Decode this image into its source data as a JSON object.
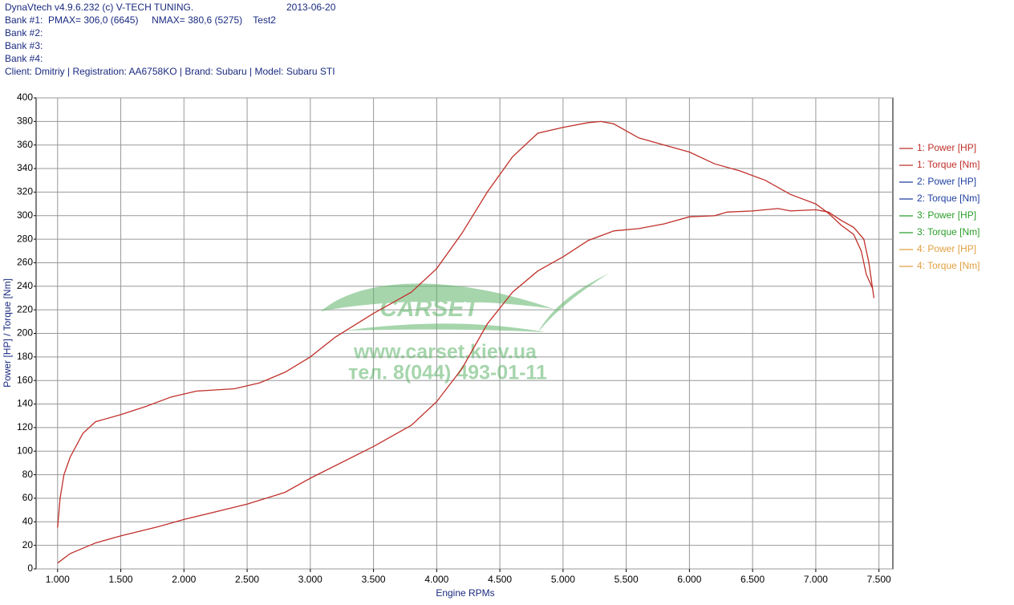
{
  "chart_data": {
    "type": "line",
    "header": [
      "DynaVtech v4.9.6.232 (c) V-TECH TUNING.",
      "Bank #1:  PMAX= 306,0 (6645)     NMAX= 380,6 (5275)    Test2",
      "Bank #2:",
      "Bank #3:",
      "Bank #4:",
      "Client: Dmitriy | Registration: AA6758KO | Brand: Subaru | Model: Subaru STI"
    ],
    "date": "2013-06-20",
    "x_label": "Engine RPMs",
    "y_label": "Power [HP] / Torque [Nm]",
    "watermark": [
      "CARSET",
      "www.carset.kiev.ua",
      "тел. 8(044) 493-01-11"
    ],
    "xlim": [
      830,
      7610
    ],
    "ylim": [
      0,
      400
    ],
    "xticks": [
      {
        "value": 1000,
        "label": "1.000"
      },
      {
        "value": 1500,
        "label": "1.500"
      },
      {
        "value": 2000,
        "label": "2.000"
      },
      {
        "value": 2500,
        "label": "2.500"
      },
      {
        "value": 3000,
        "label": "3.000"
      },
      {
        "value": 3500,
        "label": "3.500"
      },
      {
        "value": 4000,
        "label": "4.000"
      },
      {
        "value": 4500,
        "label": "4.500"
      },
      {
        "value": 5000,
        "label": "5.000"
      },
      {
        "value": 5500,
        "label": "5.500"
      },
      {
        "value": 6000,
        "label": "6.000"
      },
      {
        "value": 6500,
        "label": "6.500"
      },
      {
        "value": 7000,
        "label": "7.000"
      },
      {
        "value": 7500,
        "label": "7.500"
      }
    ],
    "yticks": [
      0,
      20,
      40,
      60,
      80,
      100,
      120,
      140,
      160,
      180,
      200,
      220,
      240,
      260,
      280,
      300,
      320,
      340,
      360,
      380,
      400
    ],
    "grid": true,
    "legend": "right",
    "series": [
      {
        "name": "1: Power [HP]",
        "color": "#c0302a",
        "x": [
          1000,
          1100,
          1300,
          1500,
          1800,
          2000,
          2500,
          2800,
          3000,
          3500,
          3800,
          4000,
          4200,
          4400,
          4600,
          4800,
          5000,
          5200,
          5400,
          5600,
          5800,
          6000,
          6200,
          6300,
          6500,
          6700,
          6800,
          7000,
          7100,
          7200,
          7300,
          7380,
          7420,
          7460
        ],
        "values": [
          5,
          13,
          22,
          28,
          36,
          42,
          55,
          65,
          77,
          104,
          122,
          142,
          170,
          208,
          235,
          253,
          265,
          279,
          287,
          289,
          293,
          299,
          300,
          303,
          304,
          306,
          304,
          305,
          303,
          296,
          290,
          280,
          260,
          230
        ]
      },
      {
        "name": "1: Torque [Nm]",
        "color": "#c0302a",
        "x": [
          1000,
          1020,
          1050,
          1100,
          1200,
          1300,
          1500,
          1700,
          1900,
          2100,
          2400,
          2600,
          2800,
          3000,
          3200,
          3500,
          3800,
          4000,
          4200,
          4400,
          4600,
          4800,
          5000,
          5200,
          5300,
          5400,
          5600,
          5800,
          6000,
          6200,
          6400,
          6600,
          6800,
          7000,
          7100,
          7200,
          7300,
          7360,
          7400,
          7450
        ],
        "values": [
          35,
          60,
          80,
          95,
          115,
          125,
          131,
          138,
          146,
          151,
          153,
          158,
          167,
          180,
          197,
          217,
          235,
          255,
          285,
          320,
          350,
          370,
          375,
          379,
          380,
          378,
          366,
          360,
          354,
          344,
          338,
          330,
          318,
          310,
          302,
          292,
          284,
          270,
          250,
          238
        ]
      },
      {
        "name": "2: Power [HP]",
        "color": "#1f3fa0",
        "x": [],
        "values": []
      },
      {
        "name": "2: Torque [Nm]",
        "color": "#1f3fa0",
        "x": [],
        "values": []
      },
      {
        "name": "3: Power [HP]",
        "color": "#2a9d2a",
        "x": [],
        "values": []
      },
      {
        "name": "3: Torque [Nm]",
        "color": "#2a9d2a",
        "x": [],
        "values": []
      },
      {
        "name": "4: Power [HP]",
        "color": "#e0a040",
        "x": [],
        "values": []
      },
      {
        "name": "4: Torque [Nm]",
        "color": "#e0a040",
        "x": [],
        "values": []
      }
    ]
  }
}
